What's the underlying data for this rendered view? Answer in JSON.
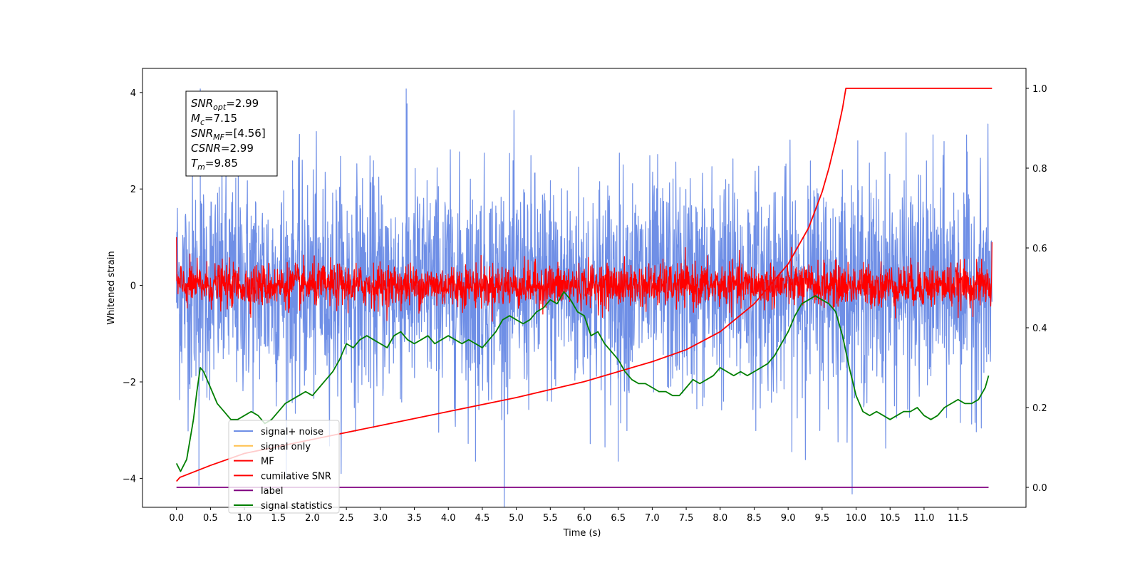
{
  "chart_data": {
    "type": "line",
    "xlabel": "Time (s)",
    "ylabel": "Whitened strain",
    "xlim": [
      -0.5,
      12.5
    ],
    "ylim": [
      -4.6,
      4.5
    ],
    "y2lim": [
      -0.05,
      1.05
    ],
    "xticks": [
      0.0,
      0.5,
      1.0,
      1.5,
      2.0,
      2.5,
      3.0,
      3.5,
      4.0,
      4.5,
      5.0,
      5.5,
      6.0,
      6.5,
      7.0,
      7.5,
      8.0,
      8.5,
      9.0,
      9.5,
      10.0,
      10.5,
      11.0,
      11.5
    ],
    "xtick_labels": [
      "0.0",
      "0.5",
      "1.0",
      "1.5",
      "2.0",
      "2.5",
      "3.0",
      "3.5",
      "4.0",
      "4.5",
      "5.0",
      "5.5",
      "6.0",
      "6.5",
      "7.0",
      "7.5",
      "8.0",
      "8.5",
      "9.0",
      "9.5",
      "10.0",
      "10.5",
      "11.0",
      "11.5"
    ],
    "yticks": [
      -4,
      -2,
      0,
      2,
      4
    ],
    "ytick_labels": [
      "−4",
      "−2",
      "0",
      "2",
      "4"
    ],
    "y2ticks": [
      0.0,
      0.2,
      0.4,
      0.6,
      0.8,
      1.0
    ],
    "y2tick_labels": [
      "0.0",
      "0.2",
      "0.4",
      "0.6",
      "0.8",
      "1.0"
    ],
    "grid": false,
    "legend_position": "lower-left",
    "annotation": [
      {
        "base": "SNR",
        "sub": "opt",
        "value": "=2.99"
      },
      {
        "base": "M",
        "sub": "c",
        "value": "=7.15"
      },
      {
        "base": "SNR",
        "sub": "MF",
        "value": "=[4.56]"
      },
      {
        "base": "CSNR",
        "sub": "",
        "value": "=2.99"
      },
      {
        "base": "T",
        "sub": "m",
        "value": "=9.85"
      }
    ],
    "series": [
      {
        "name": "signal+ noise",
        "axis": "left",
        "color": "#6f8fe6",
        "kind": "noise",
        "x_range": [
          0,
          12
        ],
        "amplitude_envelope": [
          1.15,
          1.15
        ],
        "extremes": [
          [
            0.35,
            4.08
          ],
          [
            0.33,
            -4.15
          ],
          [
            3.38,
            4.08
          ],
          [
            6.5,
            -3.65
          ],
          [
            4.4,
            -3.65
          ]
        ]
      },
      {
        "name": "signal only",
        "axis": "left",
        "color": "#ffc04d",
        "kind": "hidden",
        "x": [
          0,
          12
        ],
        "y": [
          0,
          0
        ]
      },
      {
        "name": "MF",
        "axis": "left",
        "color": "#ff0000",
        "kind": "noise",
        "x_range": [
          0,
          12
        ],
        "amplitude_envelope": [
          0.22,
          0.22
        ],
        "start_value": 1.0,
        "end_value": 0.9
      },
      {
        "name": "cumilative SNR",
        "axis": "right",
        "color": "#ff0000",
        "x": [
          0.0,
          0.05,
          0.5,
          1.0,
          2.0,
          3.0,
          4.0,
          5.0,
          6.0,
          7.0,
          7.5,
          8.0,
          8.5,
          9.0,
          9.3,
          9.5,
          9.6,
          9.7,
          9.75,
          9.8,
          9.85,
          12.0
        ],
        "y": [
          0.015,
          0.025,
          0.055,
          0.085,
          0.12,
          0.155,
          0.19,
          0.225,
          0.265,
          0.315,
          0.345,
          0.39,
          0.46,
          0.56,
          0.65,
          0.74,
          0.8,
          0.87,
          0.91,
          0.95,
          1.0,
          1.0
        ]
      },
      {
        "name": "label",
        "axis": "right",
        "color": "#800080",
        "x": [
          0,
          11.95
        ],
        "y": [
          0,
          0
        ]
      },
      {
        "name": "signal statistics",
        "axis": "right",
        "color": "#007f00",
        "x": [
          0.0,
          0.06,
          0.15,
          0.25,
          0.3,
          0.35,
          0.4,
          0.5,
          0.6,
          0.7,
          0.8,
          0.9,
          1.0,
          1.1,
          1.2,
          1.3,
          1.4,
          1.5,
          1.6,
          1.7,
          1.8,
          1.9,
          2.0,
          2.1,
          2.2,
          2.3,
          2.4,
          2.5,
          2.6,
          2.7,
          2.8,
          2.9,
          3.0,
          3.1,
          3.2,
          3.3,
          3.4,
          3.5,
          3.6,
          3.7,
          3.8,
          3.9,
          4.0,
          4.1,
          4.2,
          4.3,
          4.4,
          4.5,
          4.6,
          4.7,
          4.8,
          4.9,
          5.0,
          5.1,
          5.2,
          5.3,
          5.4,
          5.5,
          5.6,
          5.7,
          5.8,
          5.9,
          6.0,
          6.1,
          6.2,
          6.3,
          6.4,
          6.5,
          6.6,
          6.7,
          6.8,
          6.9,
          7.0,
          7.1,
          7.2,
          7.3,
          7.4,
          7.5,
          7.6,
          7.7,
          7.8,
          7.9,
          8.0,
          8.1,
          8.2,
          8.3,
          8.4,
          8.5,
          8.6,
          8.7,
          8.8,
          8.9,
          9.0,
          9.1,
          9.2,
          9.3,
          9.4,
          9.5,
          9.6,
          9.7,
          9.8,
          9.9,
          10.0,
          10.1,
          10.2,
          10.3,
          10.4,
          10.5,
          10.6,
          10.7,
          10.8,
          10.9,
          11.0,
          11.1,
          11.2,
          11.3,
          11.4,
          11.5,
          11.6,
          11.7,
          11.8,
          11.9,
          11.95
        ],
        "y": [
          0.06,
          0.04,
          0.07,
          0.17,
          0.24,
          0.3,
          0.29,
          0.25,
          0.21,
          0.19,
          0.17,
          0.17,
          0.18,
          0.19,
          0.18,
          0.16,
          0.17,
          0.19,
          0.21,
          0.22,
          0.23,
          0.24,
          0.23,
          0.25,
          0.27,
          0.29,
          0.32,
          0.36,
          0.35,
          0.37,
          0.38,
          0.37,
          0.36,
          0.35,
          0.38,
          0.39,
          0.37,
          0.36,
          0.37,
          0.38,
          0.36,
          0.37,
          0.38,
          0.37,
          0.36,
          0.37,
          0.36,
          0.35,
          0.37,
          0.39,
          0.42,
          0.43,
          0.42,
          0.41,
          0.42,
          0.44,
          0.45,
          0.47,
          0.46,
          0.49,
          0.47,
          0.44,
          0.43,
          0.38,
          0.39,
          0.36,
          0.34,
          0.32,
          0.29,
          0.27,
          0.26,
          0.26,
          0.25,
          0.24,
          0.24,
          0.23,
          0.23,
          0.25,
          0.27,
          0.26,
          0.27,
          0.28,
          0.3,
          0.29,
          0.28,
          0.29,
          0.28,
          0.29,
          0.3,
          0.31,
          0.33,
          0.36,
          0.39,
          0.43,
          0.46,
          0.47,
          0.48,
          0.47,
          0.46,
          0.44,
          0.38,
          0.3,
          0.23,
          0.19,
          0.18,
          0.19,
          0.18,
          0.17,
          0.18,
          0.19,
          0.19,
          0.2,
          0.18,
          0.17,
          0.18,
          0.2,
          0.21,
          0.22,
          0.21,
          0.21,
          0.22,
          0.25,
          0.28
        ]
      }
    ]
  }
}
